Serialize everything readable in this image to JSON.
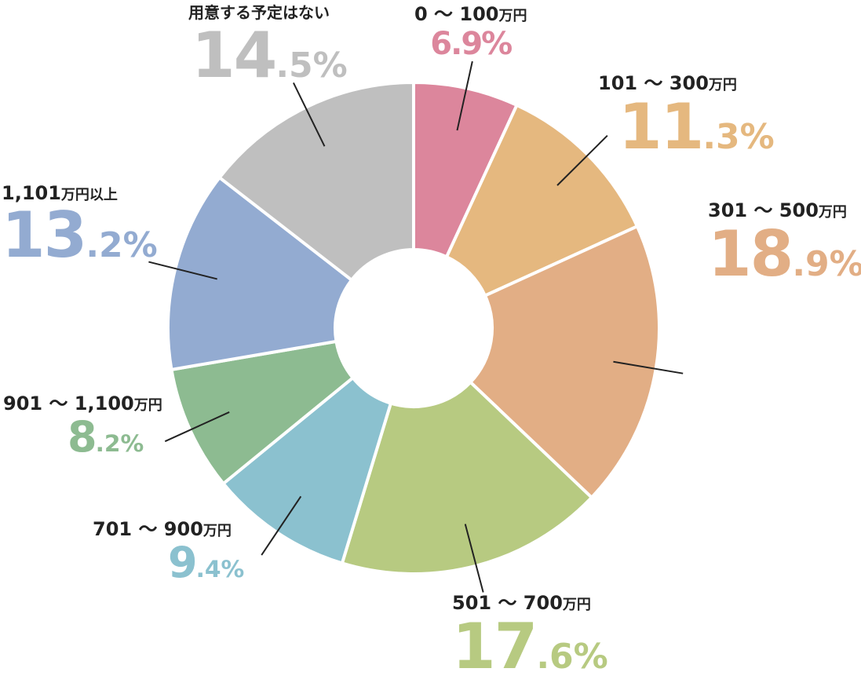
{
  "chart_data": {
    "type": "pie",
    "donut": true,
    "slices": [
      {
        "label": "0 〜 100",
        "unit": "万円",
        "value": 6.9,
        "int": "6",
        "dec": ".9%",
        "color": "#dc869c"
      },
      {
        "label": "101 〜 300",
        "unit": "万円",
        "value": 11.3,
        "int": "11",
        "dec": ".3%",
        "color": "#e5b87f"
      },
      {
        "label": "301 〜 500",
        "unit": "万円",
        "value": 18.9,
        "int": "18",
        "dec": ".9%",
        "color": "#e2ae85"
      },
      {
        "label": "501 〜 700",
        "unit": "万円",
        "value": 17.6,
        "int": "17",
        "dec": ".6%",
        "color": "#b7ca81"
      },
      {
        "label": "701 〜 900",
        "unit": "万円",
        "value": 9.4,
        "int": "9",
        "dec": ".4%",
        "color": "#8bc1cf"
      },
      {
        "label": "901 〜 1,100",
        "unit": "万円",
        "value": 8.2,
        "int": "8",
        "dec": ".2%",
        "color": "#8dbb91"
      },
      {
        "label": "1,101",
        "unit": "万円以上",
        "value": 13.2,
        "int": "13",
        "dec": ".2%",
        "color": "#93abd1"
      },
      {
        "label": "用意する予定はない",
        "unit": "",
        "value": 14.5,
        "int": "14",
        "dec": ".5%",
        "color": "#bfbfbf"
      }
    ]
  }
}
